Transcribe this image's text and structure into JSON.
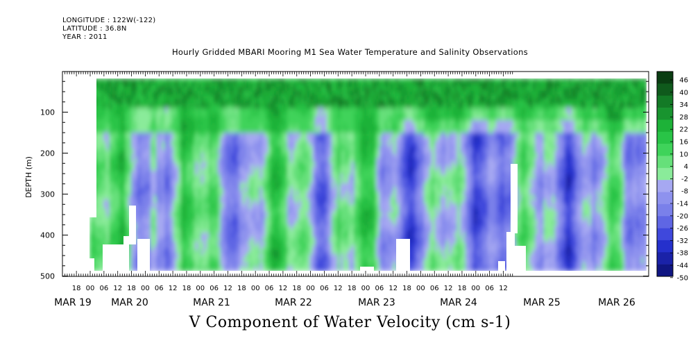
{
  "header": {
    "longitude": "LONGITUDE : 122W(-122)",
    "latitude": "LATITUDE : 36.8N",
    "year": "YEAR : 2011"
  },
  "chart_data": {
    "type": "heatmap",
    "title": "Hourly Gridded MBARI Mooring M1 Sea Water Temperature and Salinity Observations",
    "xlabel": "V Component of Water Velocity (cm s-1)",
    "ylabel": "DEPTH (m)",
    "ylim": [
      500,
      0
    ],
    "y_ticks": [
      100,
      200,
      300,
      400,
      500
    ],
    "x_hour_ticks": [
      "18",
      "00",
      "06",
      "12",
      "18",
      "00",
      "06",
      "12",
      "18",
      "00",
      "06",
      "12",
      "18",
      "00",
      "06",
      "12",
      "18",
      "00",
      "06",
      "12",
      "18",
      "00",
      "06",
      "12",
      "18",
      "00",
      "06",
      "12",
      "18",
      "00",
      "06",
      "12"
    ],
    "x_date_labels": [
      "MAR 19",
      "MAR 20",
      "MAR 21",
      "MAR 22",
      "MAR 23",
      "MAR 24",
      "MAR 25",
      "MAR 26"
    ],
    "colorbar_labels": [
      "46",
      "40",
      "34",
      "28",
      "22",
      "16",
      "10",
      "4",
      "-2",
      "-8",
      "-14",
      "-20",
      "-26",
      "-32",
      "-38",
      "-44",
      "-50"
    ],
    "color_range": [
      -50,
      52
    ],
    "colorbar_colors": [
      "#0a3d12",
      "#0f5a1c",
      "#137a26",
      "#18942f",
      "#1db238",
      "#29c447",
      "#3fd35a",
      "#66e07a",
      "#8aeb9a",
      "#a6a8f2",
      "#8e92ee",
      "#7a80ea",
      "#5f66e4",
      "#3f48dc",
      "#2530cc",
      "#1a22a8",
      "#101682"
    ],
    "data_note_values": {
      "near_surface_0_60m": 30,
      "green_bands": 10,
      "blue_bands": -12
    }
  }
}
